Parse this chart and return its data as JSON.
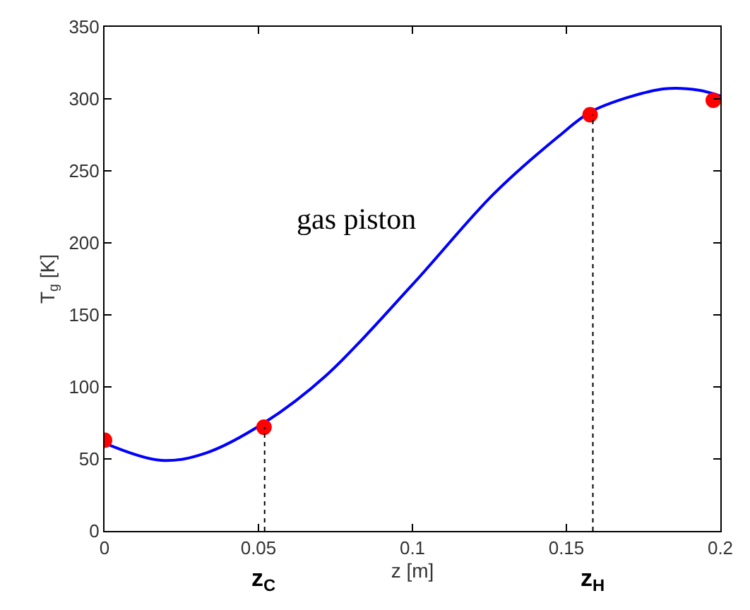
{
  "chart_data": {
    "type": "line",
    "xlabel": "z [m]",
    "ylabel": "T$_{g}$ [K]",
    "xlim": [
      0,
      0.2
    ],
    "xticks": [
      0,
      0.05,
      0.1,
      0.15,
      0.2
    ],
    "ylim": [
      0,
      350
    ],
    "yticks": [
      0,
      50,
      100,
      150,
      200,
      250,
      300,
      350
    ],
    "series": [
      {
        "color": "#0000ff",
        "marker": "none",
        "line_style": "solid",
        "x": [
          0,
          0.0184,
          0.0328,
          0.0518,
          0.072,
          0.1,
          0.1264,
          0.1475,
          0.158,
          0.17,
          0.182,
          0.193,
          0.2
        ],
        "values": [
          61,
          49,
          54,
          75,
          108,
          171,
          234,
          274,
          291,
          301,
          307,
          306,
          302
        ]
      },
      {
        "type": "scatter",
        "color": "#ff0000",
        "marker": "circle",
        "x": [
          0,
          0.0518,
          0.1577,
          0.1977
        ],
        "values": [
          63,
          72,
          289,
          299
        ]
      }
    ],
    "ref_lines": [
      {
        "axis": "x",
        "value": 0.052,
        "label": "z$_{C}$",
        "color": "#000000",
        "line_style": "dotted"
      },
      {
        "axis": "x",
        "value": 0.1586,
        "label": "z$_{H}$",
        "color": "#000000",
        "line_style": "dotted"
      }
    ],
    "annotations": [
      "gas piston"
    ]
  }
}
